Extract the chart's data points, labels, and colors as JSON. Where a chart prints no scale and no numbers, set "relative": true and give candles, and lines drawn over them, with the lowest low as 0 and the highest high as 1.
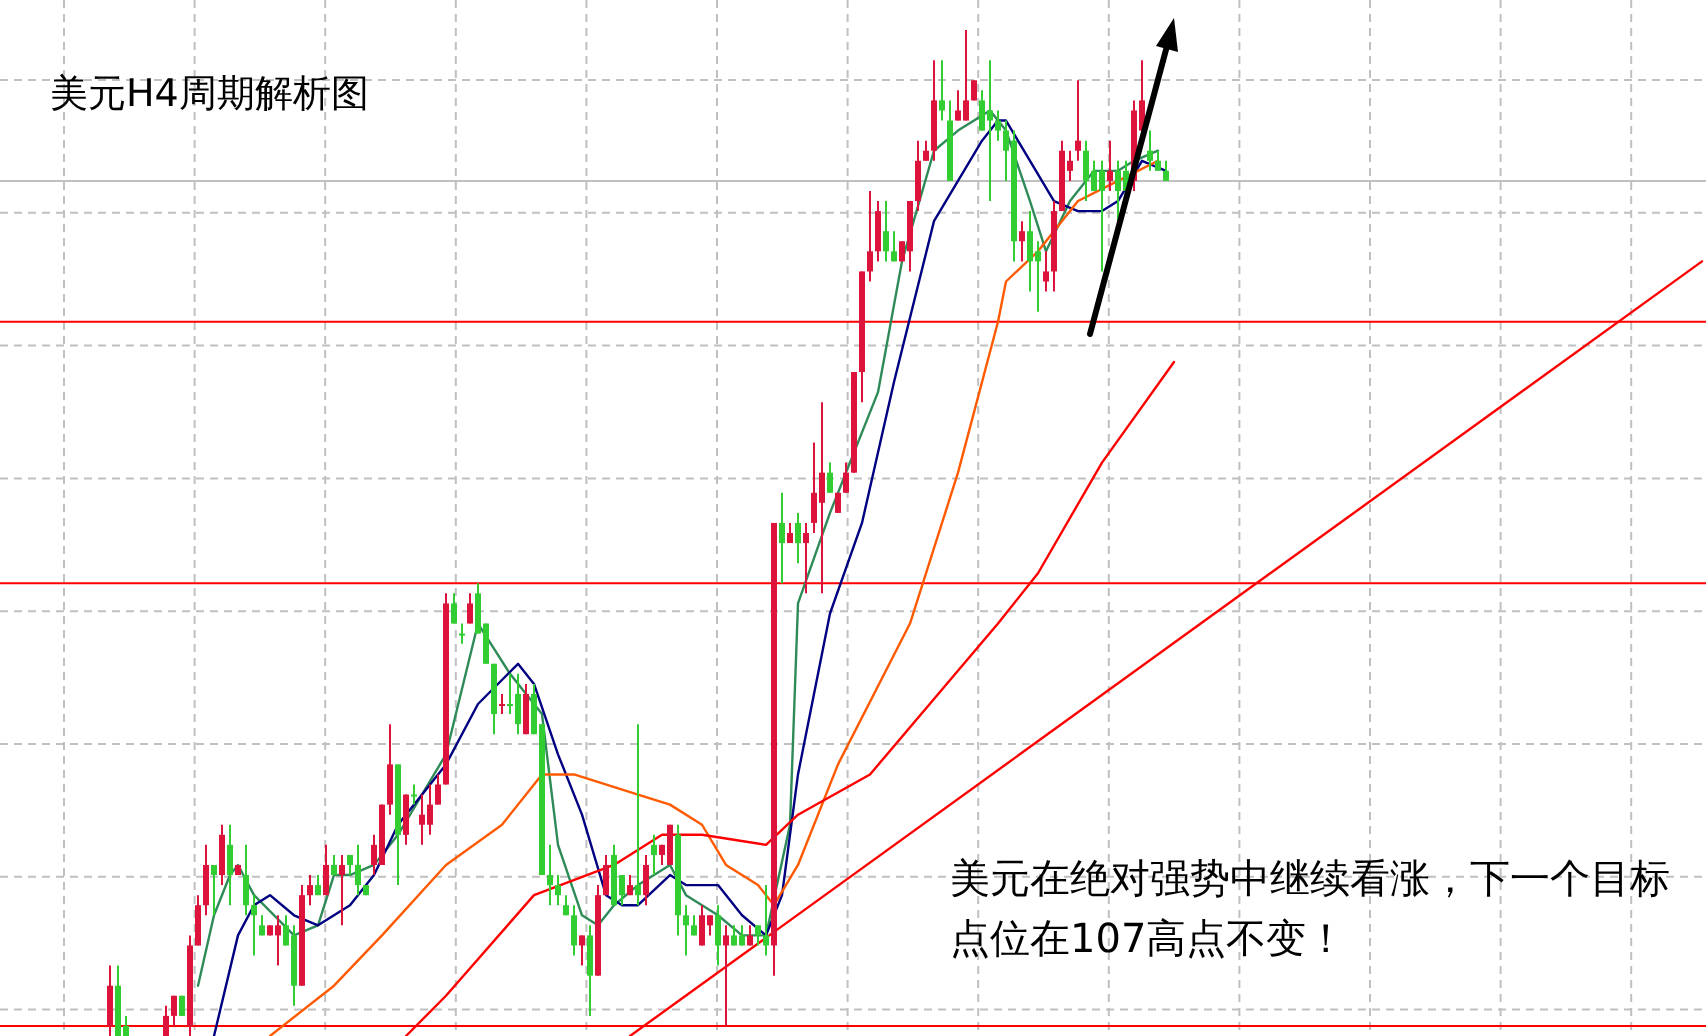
{
  "chart_data": {
    "type": "candlestick",
    "title": "美元H4周期解析图",
    "annotations": [
      "美元在绝对强势中继续看涨，下一个目标点位在107高点不变！"
    ],
    "relative": true,
    "grid": true,
    "categories": [
      null,
      null,
      null,
      null,
      null,
      null,
      null,
      null,
      null,
      null,
      null,
      null,
      null,
      null,
      null,
      null,
      null,
      null,
      null,
      null,
      null,
      null,
      null,
      null,
      null,
      null,
      null,
      null,
      null,
      null,
      null,
      null,
      null,
      null,
      null,
      null,
      null,
      null,
      null,
      null,
      null,
      null,
      null,
      null,
      null,
      null,
      null,
      null,
      null,
      null,
      null,
      null,
      null,
      null,
      null,
      null,
      null,
      null,
      null,
      null,
      null,
      null,
      null,
      null,
      null,
      null,
      null,
      null,
      null,
      null,
      null,
      null,
      null,
      null,
      null,
      null,
      null,
      null,
      null,
      null,
      null,
      null,
      null,
      null,
      null,
      null,
      null,
      null,
      null,
      null,
      null,
      null,
      null,
      null,
      null,
      null,
      null,
      null,
      null,
      null,
      null,
      null,
      null,
      null,
      null,
      null,
      null,
      null,
      null,
      null,
      null,
      null,
      null,
      null,
      null,
      null,
      null,
      null,
      null,
      null,
      null,
      null,
      null,
      null,
      null,
      null,
      null,
      null,
      null,
      null,
      null,
      null,
      null,
      null,
      null,
      null,
      null,
      null,
      null,
      null,
      null,
      null,
      null,
      null,
      null,
      null,
      null,
      null,
      null,
      null,
      null,
      null,
      null,
      null,
      null,
      null,
      null,
      null,
      null,
      null,
      null,
      null,
      null,
      null,
      null,
      null,
      null,
      null,
      null,
      null,
      null,
      null,
      null,
      null,
      null,
      null,
      null,
      null,
      null,
      null,
      null,
      null,
      null,
      null,
      null,
      null,
      null,
      null,
      null,
      null,
      null,
      null,
      null,
      null,
      null,
      null,
      null,
      null,
      null,
      null
    ],
    "ohlc": [
      [
        0.01,
        0.07,
        0,
        0.05
      ],
      [
        0.05,
        0.07,
        0,
        0
      ],
      [
        0.01,
        0.02,
        0,
        0
      ],
      null,
      null,
      null,
      null,
      [
        0,
        0.03,
        0,
        0.02
      ],
      [
        0.02,
        0.04,
        0.01,
        0.04
      ],
      [
        0.04,
        0.04,
        0.02,
        0.02
      ],
      [
        0.01,
        0.1,
        0,
        0.09
      ],
      [
        0.09,
        0.14,
        0.09,
        0.13
      ],
      [
        0.13,
        0.19,
        0.12,
        0.17
      ],
      [
        0.17,
        0.17,
        0.12,
        0.16
      ],
      [
        0.16,
        0.21,
        0.15,
        0.2
      ],
      [
        0.19,
        0.21,
        0.13,
        0.16
      ],
      [
        0.16,
        0.17,
        0.16,
        0.17
      ],
      [
        0.16,
        0.19,
        0.12,
        0.13
      ],
      [
        0.13,
        0.14,
        0.08,
        0.12
      ],
      [
        0.11,
        0.12,
        0.1,
        0.1
      ],
      [
        0.1,
        0.11,
        0.1,
        0.11
      ],
      [
        0.1,
        0.12,
        0.07,
        0.11
      ],
      [
        0.11,
        0.12,
        0.09,
        0.09
      ],
      [
        0.1,
        0.11,
        0.03,
        0.05
      ],
      [
        0.05,
        0.15,
        0.05,
        0.14
      ],
      [
        0.14,
        0.16,
        0.13,
        0.15
      ],
      [
        0.15,
        0.16,
        0.14,
        0.14
      ],
      [
        0.14,
        0.19,
        0.14,
        0.17
      ],
      [
        0.17,
        0.18,
        0.16,
        0.16
      ],
      [
        0.16,
        0.18,
        0.11,
        0.17
      ],
      [
        0.18,
        0.18,
        0.16,
        0.17
      ],
      [
        0.17,
        0.19,
        0.14,
        0.15
      ],
      [
        0.15,
        0.15,
        0.14,
        0.14
      ],
      [
        0.17,
        0.2,
        0.16,
        0.19
      ],
      [
        0.17,
        0.23,
        0.17,
        0.23
      ],
      [
        0.23,
        0.31,
        0.22,
        0.27
      ],
      [
        0.27,
        0.27,
        0.15,
        0.2
      ],
      [
        0.2,
        0.24,
        0.19,
        0.24
      ],
      [
        0.24,
        0.25,
        0.23,
        0.24
      ],
      [
        0.21,
        0.24,
        0.19,
        0.22
      ],
      [
        0.21,
        0.25,
        0.2,
        0.23
      ],
      [
        0.23,
        0.26,
        0.23,
        0.25
      ],
      [
        0.25,
        0.44,
        0.25,
        0.43
      ],
      [
        0.43,
        0.44,
        0.41,
        0.41
      ],
      [
        0.4,
        0.41,
        0.39,
        0.4
      ],
      [
        0.41,
        0.44,
        0.41,
        0.43
      ],
      [
        0.44,
        0.45,
        0.4,
        0.4
      ],
      [
        0.41,
        0.41,
        0.37,
        0.37
      ],
      [
        0.37,
        0.37,
        0.3,
        0.32
      ],
      [
        0.33,
        0.34,
        0.32,
        0.33
      ],
      [
        0.33,
        0.36,
        0.32,
        0.33
      ],
      [
        0.34,
        0.36,
        0.3,
        0.31
      ],
      [
        0.3,
        0.35,
        0.3,
        0.34
      ],
      [
        0.34,
        0.35,
        0.3,
        0.3
      ],
      [
        0.31,
        0.31,
        0.16,
        0.16
      ],
      [
        0.16,
        0.19,
        0.13,
        0.15
      ],
      [
        0.15,
        0.16,
        0.13,
        0.14
      ],
      [
        0.13,
        0.14,
        0.12,
        0.12
      ],
      [
        0.12,
        0.13,
        0.08,
        0.09
      ],
      [
        0.09,
        0.1,
        0.07,
        0.1
      ],
      [
        0.1,
        0.11,
        0.02,
        0.06
      ],
      [
        0.06,
        0.15,
        0.06,
        0.14
      ],
      [
        0.14,
        0.18,
        0.14,
        0.17
      ],
      [
        0.18,
        0.19,
        0.13,
        0.13
      ],
      [
        0.16,
        0.16,
        0.13,
        0.14
      ],
      [
        0.14,
        0.16,
        0.14,
        0.15
      ],
      [
        0.15,
        0.31,
        0.13,
        0.14
      ],
      [
        0.14,
        0.18,
        0.13,
        0.17
      ],
      [
        0.19,
        0.2,
        0.16,
        0.18
      ],
      [
        0.18,
        0.19,
        0.17,
        0.19
      ],
      [
        0.17,
        0.21,
        0.17,
        0.21
      ],
      [
        0.2,
        0.21,
        0.1,
        0.12
      ],
      [
        0.12,
        0.13,
        0.08,
        0.11
      ],
      [
        0.11,
        0.12,
        0.1,
        0.1
      ],
      [
        0.09,
        0.13,
        0.09,
        0.12
      ],
      [
        0.11,
        0.12,
        0.1,
        0.12
      ],
      [
        0.12,
        0.13,
        0.07,
        0.09
      ],
      [
        0.09,
        0.11,
        0.01,
        0.1
      ],
      [
        0.1,
        0.11,
        0.09,
        0.09
      ],
      [
        0.1,
        0.11,
        0.09,
        0.09
      ],
      [
        0.09,
        0.11,
        0.09,
        0.1
      ],
      [
        0.11,
        0.11,
        0.09,
        0.1
      ],
      [
        0.1,
        0.15,
        0.08,
        0.09
      ],
      [
        0.09,
        0.51,
        0.06,
        0.51
      ],
      [
        0.51,
        0.54,
        0.45,
        0.49
      ],
      [
        0.49,
        0.51,
        0.49,
        0.5
      ],
      [
        0.51,
        0.52,
        0.47,
        0.49
      ],
      [
        0.49,
        0.51,
        0.44,
        0.5
      ],
      [
        0.51,
        0.59,
        0.5,
        0.54
      ],
      [
        0.53,
        0.63,
        0.44,
        0.56
      ],
      [
        0.56,
        0.57,
        0.54,
        0.54
      ],
      [
        0.52,
        0.54,
        0.52,
        0.54
      ],
      [
        0.54,
        0.57,
        0.54,
        0.56
      ],
      [
        0.56,
        0.66,
        0.56,
        0.66
      ],
      [
        0.66,
        0.76,
        0.63,
        0.76
      ],
      [
        0.76,
        0.84,
        0.75,
        0.78
      ],
      [
        0.78,
        0.83,
        0.77,
        0.82
      ],
      [
        0.8,
        0.83,
        0.77,
        0.78
      ],
      [
        0.78,
        0.8,
        0.77,
        0.77
      ],
      [
        0.77,
        0.79,
        0.77,
        0.79
      ],
      [
        0.78,
        0.83,
        0.76,
        0.83
      ],
      [
        0.83,
        0.89,
        0.82,
        0.87
      ],
      [
        0.87,
        0.89,
        0.87,
        0.88
      ],
      [
        0.88,
        0.97,
        0.87,
        0.93
      ],
      [
        0.93,
        0.97,
        0.91,
        0.92
      ],
      [
        0.91,
        0.93,
        0.85,
        0.85
      ],
      [
        0.91,
        0.94,
        0.91,
        0.92
      ],
      [
        0.91,
        1,
        0.91,
        0.93
      ],
      [
        0.93,
        0.95,
        0.93,
        0.95
      ],
      [
        0.93,
        0.94,
        0.9,
        0.9
      ],
      [
        0.92,
        0.97,
        0.83,
        0.91
      ],
      [
        0.91,
        0.92,
        0.89,
        0.9
      ],
      [
        0.9,
        0.91,
        0.85,
        0.88
      ],
      [
        0.89,
        0.9,
        0.77,
        0.79
      ],
      [
        0.79,
        0.81,
        0.77,
        0.8
      ],
      [
        0.8,
        0.82,
        0.74,
        0.77
      ],
      [
        0.78,
        0.79,
        0.72,
        0.77
      ],
      [
        0.75,
        0.78,
        0.74,
        0.76
      ],
      [
        0.76,
        0.83,
        0.74,
        0.82
      ],
      [
        0.82,
        0.89,
        0.82,
        0.88
      ],
      [
        0.86,
        0.88,
        0.85,
        0.87
      ],
      [
        0.88,
        0.95,
        0.87,
        0.89
      ],
      [
        0.88,
        0.89,
        0.83,
        0.85
      ],
      [
        0.86,
        0.87,
        0.84,
        0.84
      ],
      [
        0.86,
        0.87,
        0.76,
        0.84
      ],
      [
        0.85,
        0.89,
        0.84,
        0.86
      ],
      [
        0.86,
        0.87,
        0.81,
        0.84
      ],
      [
        0.86,
        0.87,
        0.84,
        0.84
      ],
      [
        0.85,
        0.93,
        0.84,
        0.92
      ],
      [
        0.9,
        0.97,
        0.9,
        0.93
      ],
      [
        0.88,
        0.9,
        0.86,
        0.87
      ],
      [
        0.87,
        0.88,
        0.86,
        0.86
      ],
      [
        0.86,
        0.87,
        0.85,
        0.85
      ],
      null,
      null,
      null,
      null,
      null,
      null,
      null,
      null,
      null,
      null,
      null,
      null,
      null,
      null,
      null,
      null,
      null,
      null,
      null,
      null,
      null,
      null,
      null,
      null,
      null,
      null,
      null,
      null,
      null,
      null,
      null,
      null,
      null,
      null,
      null,
      null,
      null,
      null,
      null,
      null,
      null,
      null,
      null,
      null,
      null,
      null,
      null,
      null,
      null,
      null,
      null,
      null,
      null,
      null,
      null,
      null,
      null,
      null,
      null,
      null,
      null,
      null,
      null,
      null,
      null,
      null,
      null
    ],
    "colors": [
      "#dc143c",
      "#32cd32",
      "#32cd32",
      null,
      null,
      null,
      null,
      "#dc143c",
      "#dc143c",
      "#32cd32",
      "#dc143c",
      "#dc143c",
      "#dc143c",
      "#32cd32",
      "#dc143c",
      "#32cd32",
      "#dc143c",
      "#32cd32",
      "#32cd32",
      "#32cd32",
      "#dc143c",
      "#dc143c",
      "#32cd32",
      "#32cd32",
      "#dc143c",
      "#dc143c",
      "#32cd32",
      "#dc143c",
      "#32cd32",
      "#dc143c",
      "#32cd32",
      "#32cd32",
      "#32cd32",
      "#dc143c",
      "#dc143c",
      "#dc143c",
      "#32cd32",
      "#dc143c",
      "#32cd32",
      "#dc143c",
      "#dc143c",
      "#dc143c",
      "#dc143c",
      "#32cd32",
      "#32cd32",
      "#dc143c",
      "#32cd32",
      "#32cd32",
      "#32cd32",
      "#dc143c",
      "#32cd32",
      "#32cd32",
      "#dc143c",
      "#32cd32",
      "#32cd32",
      "#32cd32",
      "#32cd32",
      "#32cd32",
      "#32cd32",
      "#dc143c",
      "#32cd32",
      "#dc143c",
      "#dc143c",
      "#32cd32",
      "#32cd32",
      "#dc143c",
      "#32cd32",
      "#dc143c",
      "#32cd32",
      "#dc143c",
      "#dc143c",
      "#32cd32",
      "#32cd32",
      "#32cd32",
      "#dc143c",
      "#dc143c",
      "#32cd32",
      "#dc143c",
      "#32cd32",
      "#32cd32",
      "#dc143c",
      "#32cd32",
      "#32cd32",
      "#dc143c",
      "#32cd32",
      "#dc143c",
      "#32cd32",
      "#dc143c",
      "#dc143c",
      "#dc143c",
      "#32cd32",
      "#dc143c",
      "#dc143c",
      "#dc143c",
      "#dc143c",
      "#dc143c",
      "#dc143c",
      "#32cd32",
      "#32cd32",
      "#dc143c",
      "#dc143c",
      "#dc143c",
      "#dc143c",
      "#dc143c",
      "#32cd32",
      "#32cd32",
      "#dc143c",
      "#dc143c",
      "#dc143c",
      "#32cd32",
      "#32cd32",
      "#32cd32",
      "#32cd32",
      "#32cd32",
      "#dc143c",
      "#32cd32",
      "#32cd32",
      "#dc143c",
      "#dc143c",
      "#dc143c",
      "#dc143c",
      "#dc143c",
      "#32cd32",
      "#32cd32",
      "#32cd32",
      "#dc143c",
      "#32cd32",
      "#32cd32",
      "#dc143c",
      "#dc143c",
      "#32cd32",
      "#32cd32",
      "#32cd32",
      null,
      null,
      null,
      null,
      null,
      null,
      null,
      null,
      null,
      null,
      null,
      null,
      null,
      null,
      null,
      null,
      null,
      null,
      null,
      null,
      null,
      null,
      null,
      null,
      null,
      null,
      null,
      null,
      null,
      null,
      null,
      null,
      null,
      null,
      null,
      null,
      null,
      null,
      null,
      null,
      null,
      null,
      null,
      null,
      null,
      null,
      null,
      null,
      null,
      null,
      null,
      null,
      null,
      null,
      null,
      null,
      null,
      null,
      null,
      null,
      null,
      null,
      null,
      null,
      null,
      null,
      null
    ],
    "series": [
      {
        "type": "line",
        "color": "#2e8b57",
        "values": [
          null,
          null,
          null,
          null,
          null,
          null,
          null,
          null,
          null,
          null,
          null,
          0.05,
          null,
          0.12,
          null,
          0.16,
          0.17,
          null,
          0.14,
          null,
          null,
          null,
          null,
          0.1,
          null,
          null,
          0.11,
          null,
          0.16,
          null,
          0.16,
          null,
          null,
          0.17,
          null,
          null,
          0.2,
          null,
          null,
          null,
          null,
          null,
          0.28,
          null,
          null,
          null,
          0.41,
          null,
          null,
          null,
          0.36,
          null,
          null,
          null,
          0.32,
          null,
          0.19,
          null,
          null,
          0.12,
          null,
          0.11,
          null,
          0.13,
          null,
          null,
          0.15,
          null,
          null,
          null,
          0.17,
          null,
          0.14,
          null,
          null,
          null,
          0.12,
          null,
          null,
          0.1,
          null,
          null,
          0.1,
          null,
          null,
          0.21,
          0.43,
          null,
          null,
          null,
          0.52,
          null,
          null,
          null,
          null,
          null,
          0.64,
          null,
          null,
          0.77,
          null,
          null,
          null,
          0.88,
          null,
          null,
          0.9,
          null,
          null,
          null,
          0.92,
          null,
          0.9,
          null,
          null,
          0.83,
          null,
          0.78,
          null,
          null,
          0.83,
          null,
          null,
          0.86,
          null,
          null,
          0.86,
          null,
          0.87,
          null,
          null,
          0.88,
          null,
          null,
          null,
          null,
          null,
          null,
          null,
          null,
          null,
          null,
          null,
          null,
          null,
          null,
          null,
          null,
          null,
          null,
          null,
          null,
          null,
          null,
          null,
          null,
          null,
          null,
          null,
          null,
          null,
          null,
          null,
          null,
          null,
          null,
          null,
          null,
          null,
          null,
          null,
          null,
          null,
          null,
          null,
          null,
          null,
          null,
          null,
          null,
          null,
          null,
          null,
          null,
          null,
          null,
          null,
          null,
          null,
          null,
          null,
          null,
          null,
          null,
          null,
          null,
          null,
          null,
          null,
          null
        ]
      },
      {
        "type": "line",
        "color": "#000080",
        "values": [
          null,
          null,
          null,
          null,
          null,
          null,
          null,
          null,
          null,
          null,
          null,
          null,
          null,
          0,
          null,
          null,
          0.1,
          null,
          0.13,
          null,
          0.14,
          null,
          null,
          0.12,
          null,
          null,
          0.11,
          null,
          null,
          null,
          0.13,
          null,
          null,
          0.16,
          null,
          null,
          0.21,
          null,
          null,
          null,
          null,
          null,
          0.27,
          null,
          null,
          null,
          0.33,
          null,
          null,
          null,
          null,
          0.37,
          null,
          0.35,
          null,
          null,
          0.28,
          null,
          null,
          0.22,
          null,
          null,
          0.14,
          null,
          0.13,
          null,
          0.13,
          null,
          null,
          null,
          0.16,
          null,
          0.15,
          null,
          null,
          null,
          0.15,
          null,
          null,
          0.12,
          null,
          null,
          0.1,
          null,
          0.14,
          null,
          0.26,
          null,
          null,
          null,
          0.42,
          null,
          null,
          null,
          0.51,
          null,
          null,
          null,
          0.65,
          null,
          null,
          null,
          null,
          0.81,
          null,
          null,
          0.85,
          null,
          null,
          0.89,
          null,
          0.91,
          0.91,
          null,
          null,
          0.87,
          null,
          null,
          0.83,
          null,
          null,
          0.82,
          null,
          null,
          0.82,
          null,
          0.83,
          null,
          null,
          0.87,
          null,
          null,
          0.86,
          null,
          null,
          null,
          null,
          null,
          null,
          null,
          null,
          null,
          null,
          null,
          null,
          null,
          null,
          null,
          null,
          null,
          null,
          null,
          null,
          null,
          null,
          null,
          null,
          null,
          null,
          null,
          null,
          null,
          null,
          null,
          null,
          null,
          null,
          null,
          null,
          null,
          null,
          null,
          null,
          null,
          null,
          null,
          null,
          null,
          null,
          null,
          null,
          null,
          null,
          null,
          null,
          null,
          null,
          null,
          null,
          null,
          null,
          null,
          null,
          null,
          null,
          null,
          null,
          null,
          null,
          null
        ]
      },
      {
        "type": "line",
        "color": "#ff5a00",
        "values": [
          null,
          null,
          null,
          null,
          null,
          null,
          null,
          null,
          null,
          null,
          null,
          null,
          null,
          null,
          null,
          null,
          null,
          null,
          null,
          null,
          0,
          null,
          null,
          null,
          null,
          null,
          null,
          null,
          0.05,
          null,
          null,
          null,
          null,
          null,
          0.1,
          null,
          null,
          null,
          null,
          null,
          null,
          null,
          0.17,
          null,
          null,
          null,
          null,
          null,
          null,
          0.21,
          null,
          null,
          null,
          null,
          0.26,
          null,
          null,
          null,
          0.26,
          null,
          null,
          null,
          null,
          null,
          null,
          null,
          0.24,
          null,
          null,
          null,
          0.23,
          null,
          null,
          null,
          0.21,
          null,
          null,
          0.17,
          null,
          null,
          null,
          0.15,
          null,
          0.13,
          null,
          null,
          0.17,
          null,
          null,
          null,
          null,
          0.27,
          null,
          null,
          null,
          null,
          null,
          null,
          null,
          null,
          0.41,
          null,
          null,
          null,
          null,
          null,
          0.56,
          null,
          null,
          null,
          null,
          0.71,
          0.75,
          null,
          null,
          null,
          0.78,
          null,
          null,
          null,
          null,
          0.83,
          null,
          null,
          null,
          null,
          0.85,
          null,
          null,
          null,
          null,
          0.87,
          null,
          null,
          null,
          null,
          null,
          null,
          null,
          null,
          null,
          null,
          null,
          null,
          null,
          null,
          null,
          null,
          null,
          null,
          null,
          null,
          null,
          null,
          null,
          null,
          null,
          null,
          null,
          null,
          null,
          null,
          null,
          null,
          null,
          null,
          null,
          null,
          null,
          null,
          null,
          null,
          null,
          null,
          null,
          null,
          null,
          null,
          null,
          null,
          null,
          null,
          null,
          null,
          null,
          null,
          null,
          null,
          null,
          null,
          null,
          null,
          null,
          null,
          null,
          null,
          null,
          null,
          null,
          null
        ]
      },
      {
        "type": "line",
        "color": "#ff0000",
        "values": [
          null,
          null,
          null,
          null,
          null,
          null,
          null,
          null,
          null,
          null,
          null,
          null,
          null,
          null,
          null,
          null,
          null,
          null,
          null,
          null,
          null,
          null,
          null,
          null,
          null,
          null,
          null,
          null,
          null,
          null,
          null,
          null,
          null,
          null,
          null,
          null,
          null,
          0,
          null,
          null,
          null,
          null,
          0.04,
          null,
          null,
          null,
          null,
          null,
          null,
          null,
          null,
          null,
          null,
          0.14,
          null,
          null,
          null,
          null,
          null,
          null,
          null,
          null,
          null,
          0.17,
          null,
          null,
          null,
          null,
          null,
          0.2,
          null,
          null,
          null,
          null,
          0.2,
          null,
          null,
          null,
          null,
          null,
          null,
          null,
          0.19,
          null,
          null,
          null,
          0.22,
          null,
          null,
          null,
          null,
          null,
          null,
          null,
          null,
          0.26,
          null,
          null,
          null,
          null,
          null,
          null,
          null,
          null,
          null,
          null,
          null,
          null,
          null,
          null,
          null,
          0.41,
          null,
          null,
          null,
          null,
          0.46,
          null,
          null,
          null,
          null,
          null,
          null,
          null,
          0.57,
          null,
          null,
          null,
          null,
          null,
          null,
          null,
          null,
          0.67,
          null,
          null,
          null,
          null,
          null,
          null,
          null,
          null,
          null,
          null,
          null,
          null,
          null,
          null,
          null,
          null,
          null,
          null,
          null,
          null,
          null,
          null,
          null,
          null,
          null,
          null,
          null,
          null,
          null,
          null,
          null,
          null,
          null,
          null,
          null,
          null,
          null,
          null,
          null,
          null,
          null,
          null,
          null,
          null,
          null,
          null,
          null,
          null,
          null,
          null,
          null,
          null,
          null,
          null,
          null,
          null,
          null,
          null,
          null,
          null,
          null,
          null,
          null,
          null,
          null,
          null
        ]
      },
      {
        "type": "line",
        "color": "#ff0000",
        "values": [
          null,
          null,
          null,
          null,
          null,
          null,
          null,
          null,
          null,
          null,
          null,
          null,
          null,
          null,
          null,
          null,
          null,
          null,
          null,
          null,
          null,
          null,
          null,
          null,
          null,
          null,
          null,
          null,
          null,
          null,
          null,
          null,
          null,
          null,
          null,
          null,
          null,
          null,
          null,
          null,
          null,
          null,
          null,
          null,
          null,
          null,
          null,
          null,
          null,
          null,
          null,
          null,
          null,
          null,
          null,
          null,
          null,
          null,
          null,
          null,
          null,
          null,
          null,
          null,
          null,
          0,
          null,
          null,
          null,
          null,
          null,
          null,
          null,
          null,
          null,
          null,
          null,
          null,
          null,
          null,
          null,
          null,
          null,
          null,
          null,
          null,
          null,
          null,
          null,
          null,
          null,
          null,
          null,
          null,
          null,
          null,
          null,
          null,
          null,
          null,
          null,
          null,
          null,
          null,
          null,
          null,
          null,
          null,
          null,
          null,
          null,
          null,
          null,
          null,
          null,
          null,
          null,
          null,
          null,
          null,
          null,
          null,
          null,
          null,
          null,
          null,
          null,
          null,
          null,
          null,
          null,
          null,
          null,
          null,
          null,
          null,
          null,
          null,
          null,
          null,
          null,
          null,
          null,
          null,
          null,
          null,
          null,
          null,
          null,
          null,
          null,
          null,
          null,
          null,
          null,
          null,
          null,
          null,
          null,
          null,
          null,
          null,
          null,
          null,
          null,
          null,
          null,
          null,
          null,
          null,
          null,
          null,
          null,
          null,
          null,
          null,
          null,
          null,
          null,
          null,
          null,
          null,
          null,
          null,
          null,
          null,
          null,
          null,
          null,
          null,
          null,
          null,
          null,
          null,
          null,
          null,
          null,
          null,
          null,
          0.77
        ]
      }
    ],
    "ref_lines": [
      {
        "axis": "y",
        "value": 0.85,
        "color": "#c0c0c0"
      },
      {
        "axis": "y",
        "value": 0.71,
        "color": "#ff0000"
      },
      {
        "axis": "y",
        "value": 0.45,
        "color": "#ff0000"
      },
      {
        "axis": "y",
        "value": 0.01,
        "color": "#ff0000"
      }
    ]
  }
}
